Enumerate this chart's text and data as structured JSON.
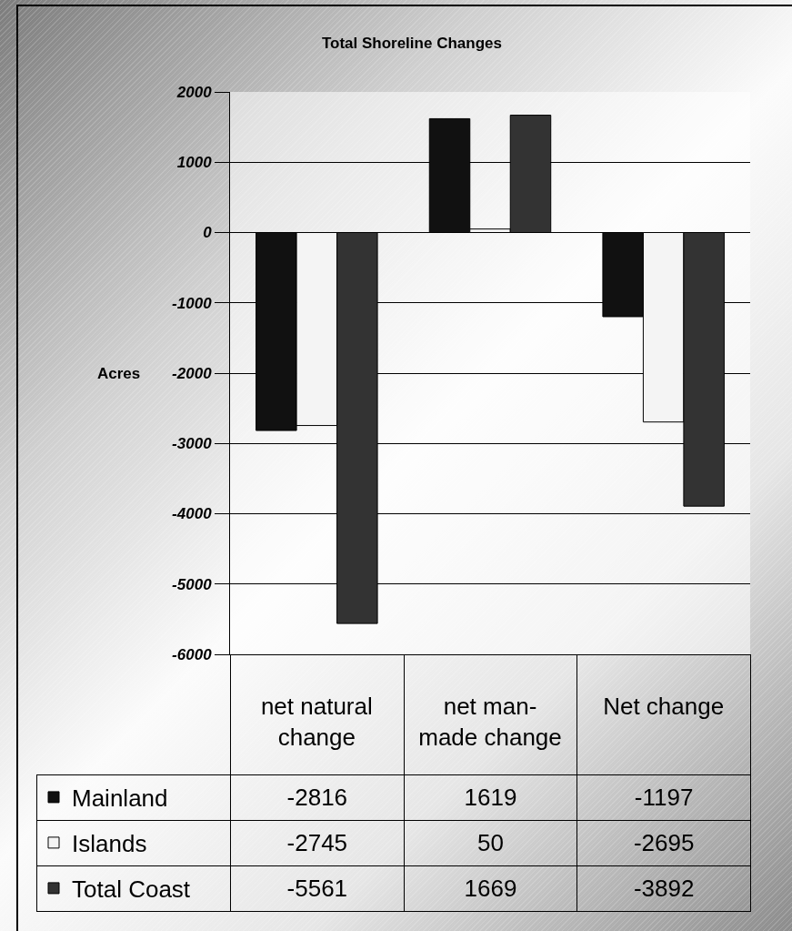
{
  "chart_data": {
    "type": "bar",
    "title": "Total Shoreline Changes",
    "ylabel": "Acres",
    "categories": [
      "net natural change",
      "net man-made change",
      "Net change"
    ],
    "series": [
      {
        "name": "Mainland",
        "color": "#111111",
        "values": [
          -2816,
          1619,
          -1197
        ]
      },
      {
        "name": "Islands",
        "color": "#f4f4f4",
        "values": [
          -2745,
          50,
          -2695
        ]
      },
      {
        "name": "Total Coast",
        "color": "#333333",
        "values": [
          -5561,
          1669,
          -3892
        ]
      }
    ],
    "ylim": [
      -6000,
      2000
    ],
    "yticks": [
      -6000,
      -5000,
      -4000,
      -3000,
      -2000,
      -1000,
      0,
      1000,
      2000
    ],
    "grid": "y",
    "legend": "bottom left",
    "data_labels": true
  }
}
